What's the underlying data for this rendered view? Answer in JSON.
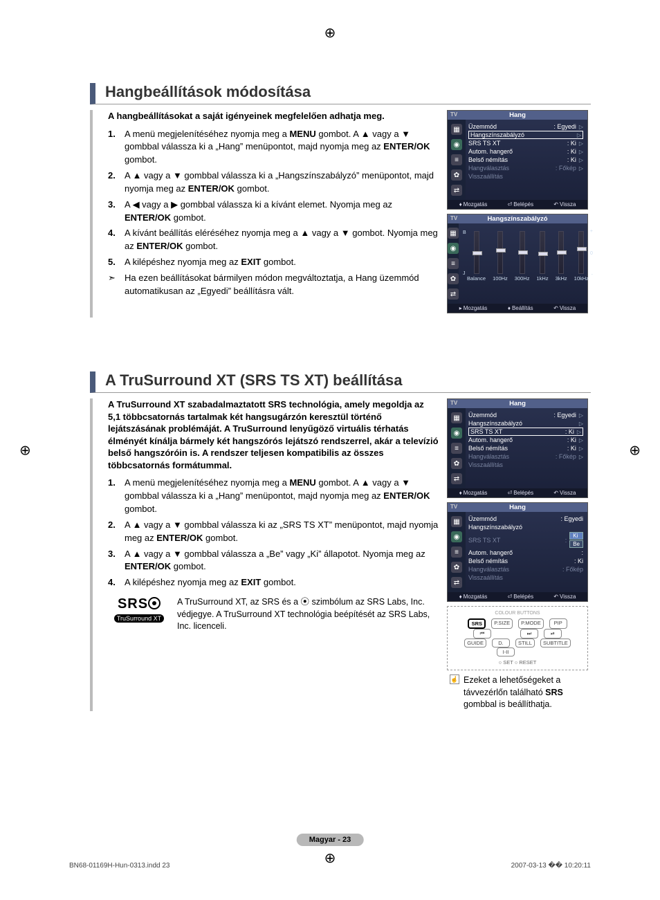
{
  "reg_marks": {
    "glyph": "⊕"
  },
  "section1": {
    "title": "Hangbeállítások módosítása",
    "intro": "A hangbeállításokat a saját igényeinek megfelelően adhatja meg.",
    "steps": [
      {
        "n": "1.",
        "html": "A menü megjelenítéséhez nyomja meg a <b>MENU</b> gombot. A ▲ vagy a ▼ gombbal válassza ki a „Hang” menüpontot, majd nyomja meg az <b>ENTER/OK</b> gombot."
      },
      {
        "n": "2.",
        "html": "A ▲ vagy a ▼ gombbal válassza ki a „Hangszínszabályzó” menüpontot, majd nyomja meg az <b>ENTER/OK</b> gombot."
      },
      {
        "n": "3.",
        "html": "A ◀ vagy a ▶ gombbal válassza ki a kívánt elemet. Nyomja meg az <b>ENTER/OK</b> gombot."
      },
      {
        "n": "4.",
        "html": "A kívánt beállítás eléréséhez nyomja meg a ▲ vagy a ▼ gombot. Nyomja meg az <b>ENTER/OK</b> gombot."
      },
      {
        "n": "5.",
        "html": "A kilépéshez nyomja meg az <b>EXIT</b> gombot."
      }
    ],
    "note": {
      "icon": "➣",
      "html": "Ha ezen beállításokat bármilyen módon megváltoztatja, a Hang üzemmód automatikusan az „Egyedi” beállításra vált."
    }
  },
  "section2": {
    "title": "A TruSurround XT (SRS TS XT) beállítása",
    "intro": "A TruSurround XT szabadalmaztatott SRS technológia, amely megoldja az 5,1 többcsatornás tartalmak két hangsugárzón keresztül történő lejátszásának problémáját. A TruSurround lenyűgöző virtuális térhatás élményét kínálja bármely két hangszórós lejátszó rendszerrel, akár a televízió belső hangszóróin is. A rendszer teljesen kompatibilis az összes többcsatornás formátummal.",
    "steps": [
      {
        "n": "1.",
        "html": "A menü megjelenítéséhez nyomja meg a <b>MENU</b> gombot. A ▲ vagy a ▼ gombbal válassza ki a „Hang” menüpontot, majd nyomja meg az <b>ENTER/OK</b> gombot."
      },
      {
        "n": "2.",
        "html": "A ▲ vagy a ▼ gombbal válassza ki az „SRS TS XT” menüpontot, majd nyomja meg az <b>ENTER/OK</b> gombot."
      },
      {
        "n": "3.",
        "html": "A ▲ vagy a ▼ gombbal válassza a „Be” vagy „Ki” állapotot. Nyomja meg az <b>ENTER/OK</b> gombot."
      },
      {
        "n": "4.",
        "html": "A kilépéshez nyomja meg az <b>EXIT</b> gombot."
      }
    ],
    "srs_note": "A TruSurround XT, az SRS és a ⦿ szimbólum az SRS Labs, Inc. védjegye. A TruSurround XT technológia beépítését az SRS Labs, Inc. licenceli.",
    "srs_logo": {
      "main": "SRS",
      "sub": "TruSurround XT"
    },
    "tip": {
      "html": "Ezeket a lehetőségeket a távvezérlőn található <b>SRS</b> gombbal is beállíthatja."
    }
  },
  "tv_common": {
    "tv_label": "TV",
    "footer_moz": "Mozgatás",
    "footer_bel": "Belépés",
    "footer_beall": "Beállítás",
    "footer_vis": "Vissza"
  },
  "panel_hang1": {
    "title": "Hang",
    "rows": [
      {
        "l": "Üzemmód",
        "r": ": Egyedi",
        "tri": true
      },
      {
        "l": "Hangszínszabályzó",
        "r": "",
        "tri": true,
        "boxsel": true
      },
      {
        "l": "SRS TS XT",
        "r": ": Ki",
        "tri": true
      },
      {
        "l": "Autom. hangerő",
        "r": ": Ki",
        "tri": true
      },
      {
        "l": "Belső némítás",
        "r": ": Ki",
        "tri": true
      },
      {
        "l": "Hangválasztás",
        "r": ": Főkép",
        "tri": true,
        "dim": true
      },
      {
        "l": "Visszaállítás",
        "r": "",
        "dim": true
      }
    ]
  },
  "panel_eq": {
    "title": "Hangszínszabályzó",
    "labels": [
      "Balance",
      "100Hz",
      "300Hz",
      "1kHz",
      "3kHz",
      "10kHz"
    ],
    "knobs_pct": [
      50,
      42,
      48,
      52,
      48,
      40
    ],
    "side_top": "B",
    "side_bot": "J",
    "plus": "+",
    "zero": "0",
    "minus": "-"
  },
  "panel_hang2": {
    "title": "Hang",
    "rows": [
      {
        "l": "Üzemmód",
        "r": ": Egyedi",
        "tri": true
      },
      {
        "l": "Hangszínszabályzó",
        "r": "",
        "tri": true
      },
      {
        "l": "SRS TS XT",
        "r": ": Ki",
        "tri": true,
        "boxsel": true
      },
      {
        "l": "Autom. hangerő",
        "r": ": Ki",
        "tri": true
      },
      {
        "l": "Belső némítás",
        "r": ": Ki",
        "tri": true
      },
      {
        "l": "Hangválasztás",
        "r": ": Főkép",
        "tri": true,
        "dim": true
      },
      {
        "l": "Visszaállítás",
        "r": "",
        "dim": true
      }
    ]
  },
  "panel_hang3": {
    "title": "Hang",
    "rows": [
      {
        "l": "Üzemmód",
        "r": ": Egyedi"
      },
      {
        "l": "Hangszínszabályzó",
        "r": ""
      },
      {
        "l": "SRS TS XT",
        "r": ":",
        "dim": true,
        "dropdown": [
          "Ki",
          "Be"
        ]
      },
      {
        "l": "Autom. hangerő",
        "r": ":"
      },
      {
        "l": "Belső némítás",
        "r": ": Ki"
      },
      {
        "l": "Hangválasztás",
        "r": ": Főkép",
        "dim": true
      },
      {
        "l": "Visszaállítás",
        "r": "",
        "dim": true
      }
    ]
  },
  "remote": {
    "header": "COLOUR BUTTONS",
    "rows": [
      [
        "SRS",
        "P.SIZE",
        "P.MODE",
        "PIP"
      ],
      [
        "⏮",
        "",
        "⏭",
        "⏯"
      ],
      [
        "GUIDE",
        "D.",
        "STILL",
        "SUBTITLE"
      ],
      [
        "",
        "I-II",
        "",
        ""
      ]
    ],
    "circled": "SRS",
    "footer": "○ SET   ○ RESET"
  },
  "footer": {
    "lang": "Magyar -",
    "num": "23"
  },
  "print": {
    "left": "BN68-01169H-Hun-0313.indd   23",
    "right": "2007-03-13   �� 10:20:11"
  },
  "colors": {
    "accent_border": "#4a5a7a",
    "panel_bg_top": "#2a3250",
    "panel_bg_bot": "#1a2038",
    "panel_header": "#52608a"
  }
}
